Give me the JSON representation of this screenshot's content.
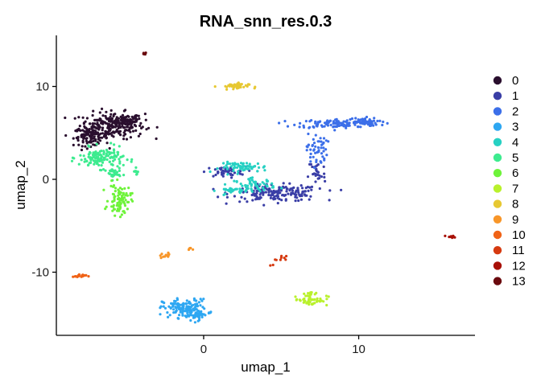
{
  "chart_data": {
    "type": "scatter",
    "title": "RNA_snn_res.0.3",
    "xlabel": "umap_1",
    "ylabel": "umap_2",
    "xlim": [
      -9.5,
      17.5
    ],
    "ylim": [
      -16.8,
      15.5
    ],
    "x_ticks": [
      0,
      10
    ],
    "y_ticks": [
      10,
      0,
      -10
    ],
    "grid": false,
    "legend_position": "right",
    "series": [
      {
        "name": "0",
        "color": "#2a0f2e",
        "clusters": [
          {
            "cx": -5.9,
            "cy": 5.8,
            "rx": 1.9,
            "ry": 1.3,
            "n": 240
          },
          {
            "cx": -7.3,
            "cy": 4.6,
            "rx": 1.0,
            "ry": 0.9,
            "n": 90
          },
          {
            "cx": -4.9,
            "cy": 6.4,
            "rx": 0.9,
            "ry": 0.6,
            "n": 50
          }
        ]
      },
      {
        "name": "1",
        "color": "#3a3ea6",
        "clusters": [
          {
            "cx": 4.7,
            "cy": -1.5,
            "rx": 2.6,
            "ry": 0.8,
            "n": 170
          },
          {
            "cx": 1.4,
            "cy": 0.8,
            "rx": 1.2,
            "ry": 0.5,
            "n": 45
          },
          {
            "cx": 7.3,
            "cy": 0.6,
            "rx": 0.5,
            "ry": 1.6,
            "n": 30
          }
        ]
      },
      {
        "name": "2",
        "color": "#3c6fe9",
        "clusters": [
          {
            "cx": 8.7,
            "cy": 6.0,
            "rx": 2.4,
            "ry": 0.45,
            "n": 110
          },
          {
            "cx": 10.2,
            "cy": 6.2,
            "rx": 0.9,
            "ry": 0.4,
            "n": 50
          },
          {
            "cx": 7.3,
            "cy": 3.2,
            "rx": 0.6,
            "ry": 1.6,
            "n": 50
          }
        ]
      },
      {
        "name": "3",
        "color": "#2ea7f2",
        "clusters": [
          {
            "cx": -1.2,
            "cy": -13.9,
            "rx": 1.3,
            "ry": 0.9,
            "n": 140
          },
          {
            "cx": -0.4,
            "cy": -14.6,
            "rx": 0.6,
            "ry": 0.5,
            "n": 40
          }
        ]
      },
      {
        "name": "4",
        "color": "#27d1c3",
        "clusters": [
          {
            "cx": 2.6,
            "cy": 1.3,
            "rx": 1.4,
            "ry": 0.5,
            "n": 60
          },
          {
            "cx": 3.3,
            "cy": -0.6,
            "rx": 1.2,
            "ry": 0.6,
            "n": 55
          },
          {
            "cx": 2.0,
            "cy": -1.2,
            "rx": 1.0,
            "ry": 0.3,
            "n": 30
          }
        ]
      },
      {
        "name": "5",
        "color": "#3deb8f",
        "clusters": [
          {
            "cx": -6.6,
            "cy": 2.3,
            "rx": 1.3,
            "ry": 1.0,
            "n": 140
          },
          {
            "cx": -5.8,
            "cy": 0.6,
            "rx": 0.4,
            "ry": 0.6,
            "n": 30
          },
          {
            "cx": -4.4,
            "cy": 0.7,
            "rx": 0.2,
            "ry": 0.4,
            "n": 8
          }
        ]
      },
      {
        "name": "6",
        "color": "#6ef33a",
        "clusters": [
          {
            "cx": -5.4,
            "cy": -2.2,
            "rx": 0.65,
            "ry": 1.5,
            "n": 90
          }
        ]
      },
      {
        "name": "7",
        "color": "#b9f12c",
        "clusters": [
          {
            "cx": 6.9,
            "cy": -13.0,
            "rx": 1.0,
            "ry": 0.55,
            "n": 45
          },
          {
            "cx": 6.9,
            "cy": -12.2,
            "rx": 0.3,
            "ry": 0.15,
            "n": 8
          }
        ]
      },
      {
        "name": "8",
        "color": "#e7c832",
        "clusters": [
          {
            "cx": 1.9,
            "cy": 10.0,
            "rx": 0.9,
            "ry": 0.35,
            "n": 40
          }
        ]
      },
      {
        "name": "9",
        "color": "#f89629",
        "clusters": [
          {
            "cx": -2.5,
            "cy": -8.2,
            "rx": 0.3,
            "ry": 0.25,
            "n": 12
          },
          {
            "cx": -0.9,
            "cy": -7.6,
            "rx": 0.2,
            "ry": 0.2,
            "n": 5
          }
        ]
      },
      {
        "name": "10",
        "color": "#f06317",
        "clusters": [
          {
            "cx": -8.0,
            "cy": -10.4,
            "rx": 0.4,
            "ry": 0.18,
            "n": 18
          }
        ]
      },
      {
        "name": "11",
        "color": "#d63a10",
        "clusters": [
          {
            "cx": 5.0,
            "cy": -8.6,
            "rx": 0.3,
            "ry": 0.3,
            "n": 8
          },
          {
            "cx": 4.4,
            "cy": -9.3,
            "rx": 0.1,
            "ry": 0.1,
            "n": 2
          }
        ]
      },
      {
        "name": "12",
        "color": "#a81007",
        "clusters": [
          {
            "cx": 16.0,
            "cy": -6.2,
            "rx": 0.3,
            "ry": 0.12,
            "n": 10
          }
        ]
      },
      {
        "name": "13",
        "color": "#6a0a0e",
        "clusters": [
          {
            "cx": -3.8,
            "cy": 13.6,
            "rx": 0.12,
            "ry": 0.2,
            "n": 6
          }
        ]
      }
    ]
  }
}
